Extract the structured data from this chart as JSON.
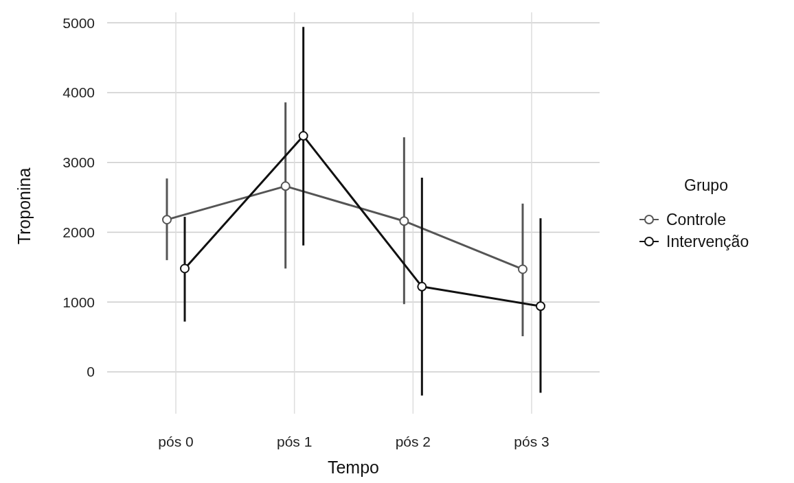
{
  "chart_data": {
    "type": "line",
    "xlabel": "Tempo",
    "ylabel": "Troponina",
    "legend_title": "Grupo",
    "categories": [
      "pós 0",
      "pós 1",
      "pós 2",
      "pós 3"
    ],
    "series": [
      {
        "name": "Controle",
        "color": "#555555",
        "values": [
          2180,
          2660,
          2160,
          1470
        ],
        "errors": [
          [
            1600,
            2770
          ],
          [
            1480,
            3860
          ],
          [
            970,
            3360
          ],
          [
            510,
            2410
          ]
        ]
      },
      {
        "name": "Intervenção",
        "color": "#111111",
        "values": [
          1480,
          3380,
          1220,
          940
        ],
        "errors": [
          [
            720,
            2220
          ],
          [
            1810,
            4940
          ],
          [
            -340,
            2780
          ],
          [
            -300,
            2200
          ]
        ]
      }
    ],
    "ylim": [
      -600,
      5150
    ],
    "yticks": [
      0,
      1000,
      2000,
      3000,
      4000,
      5000
    ],
    "grid": true,
    "legend": "right",
    "marker": "circle",
    "line_style": "solid"
  }
}
